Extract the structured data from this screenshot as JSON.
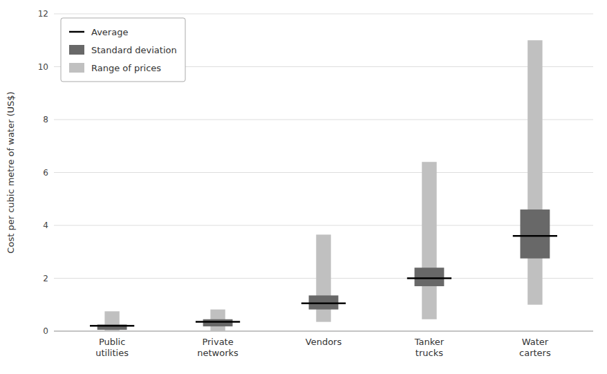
{
  "chart_data": {
    "type": "range",
    "y_label": "Cost per cubic metre of water (US$)",
    "categories": [
      "Public\nutilities",
      "Private\nnetworks",
      "Vendors",
      "Tanker\ntrucks",
      "Water\ncarters"
    ],
    "series": [
      {
        "name": "Average",
        "type": "line",
        "color": "#000000",
        "values": [
          0.2,
          0.35,
          1.05,
          2.0,
          3.6
        ]
      },
      {
        "name": "Standard deviation",
        "type": "range",
        "color": "#686868",
        "low": [
          0.05,
          0.18,
          0.82,
          1.7,
          2.75
        ],
        "high": [
          0.25,
          0.45,
          1.35,
          2.4,
          4.6
        ]
      },
      {
        "name": "Range of prices",
        "type": "range",
        "color": "#c0c0c0",
        "low": [
          0.0,
          0.0,
          0.35,
          0.45,
          1.0
        ],
        "high": [
          0.75,
          0.82,
          3.65,
          6.4,
          11.0
        ]
      }
    ],
    "ylim": [
      0,
      12
    ],
    "yticks": [
      0,
      2,
      4,
      6,
      8,
      10,
      12
    ],
    "grid": true,
    "legend": "upper left"
  }
}
